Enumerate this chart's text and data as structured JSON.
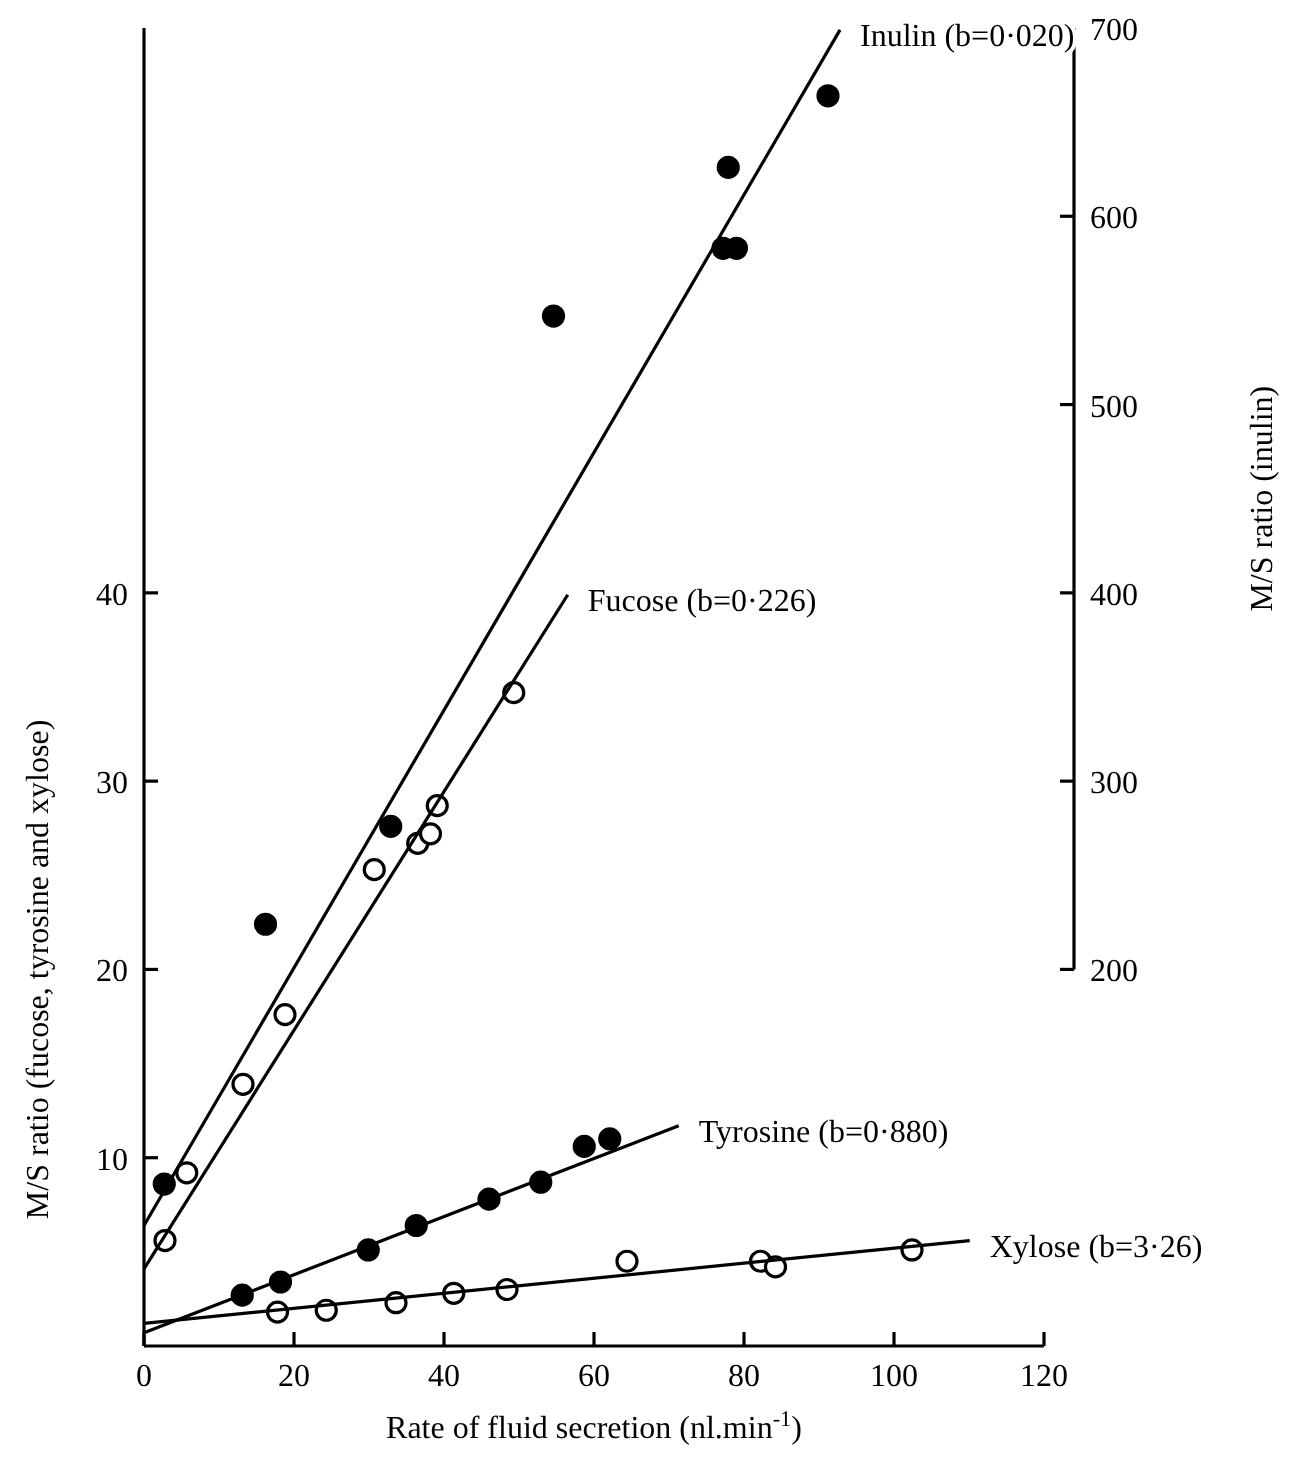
{
  "chart_data": {
    "type": "scatter",
    "xlabel": "Rate of fluid secretion (nl.min$^{-1}$)",
    "ylabel": "M/S ratio (fucose, tyrosine and xylose)",
    "y2label": "M/S ratio (inulin)",
    "xlim": [
      0,
      120
    ],
    "xticks": [
      0,
      20,
      40,
      60,
      80,
      100,
      120
    ],
    "ylim": [
      0,
      70
    ],
    "yticks": [
      10,
      20,
      30,
      40
    ],
    "y2lim": [
      0,
      700
    ],
    "y2ticks": [
      200,
      300,
      400,
      500,
      600,
      700
    ],
    "grid": false,
    "series": [
      {
        "axis": "y2",
        "color": "#000000",
        "marker": "circle",
        "x": [
          2.7,
          16.2,
          32.9,
          54.6,
          77.2,
          79,
          77.9,
          91.2
        ],
        "values": [
          86,
          224,
          276,
          547,
          583,
          583,
          626,
          664
        ]
      },
      {
        "type": "line",
        "axis": "y2",
        "name": "Inulin (b=0·020)",
        "color": "#000000",
        "x": [
          0,
          92.8
        ],
        "values": [
          64,
          699
        ]
      },
      {
        "color": "#ffffff",
        "marker": "circle",
        "x": [
          2.8,
          5.7,
          13.2,
          18.8,
          30.7,
          36.5,
          38.2,
          39.1,
          49.3
        ],
        "values": [
          5.6,
          9.2,
          13.9,
          17.6,
          25.3,
          26.7,
          27.2,
          28.7,
          34.7
        ]
      },
      {
        "type": "line",
        "name": "Fucose (b=0·226)",
        "color": "#000000",
        "x": [
          0,
          56.5
        ],
        "values": [
          4.1,
          39.9
        ]
      },
      {
        "color": "#000000",
        "marker": "circle",
        "x": [
          13.1,
          18.2,
          29.9,
          36.3,
          46,
          52.9,
          58.7,
          62.1
        ],
        "values": [
          2.7,
          3.4,
          5.1,
          6.4,
          7.8,
          8.7,
          10.6,
          11.0
        ]
      },
      {
        "type": "line",
        "name": "Tyrosine (b=0·880)",
        "color": "#000000",
        "x": [
          0,
          71.3
        ],
        "values": [
          0.7,
          11.7
        ]
      },
      {
        "color": "#ffffff",
        "marker": "circle",
        "x": [
          17.8,
          24.3,
          33.6,
          41.3,
          48.4,
          64.4,
          82.2,
          84.2,
          102.4
        ],
        "values": [
          1.8,
          1.9,
          2.3,
          2.8,
          3.0,
          4.5,
          4.5,
          4.2,
          5.1
        ]
      },
      {
        "type": "line",
        "name": "Xylose (b=3·26)",
        "color": "#000000",
        "x": [
          0,
          110.1
        ],
        "values": [
          1.2,
          5.6
        ]
      }
    ]
  }
}
